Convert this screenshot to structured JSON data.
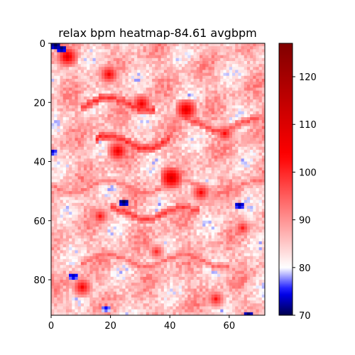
{
  "chart_data": {
    "type": "heatmap",
    "title": "relax bpm heatmap-84.61 avgbpm",
    "xlabel": "",
    "ylabel": "",
    "grid": "off",
    "cols": 72,
    "rows": 92,
    "x_range": [
      0,
      72
    ],
    "y_range": [
      0,
      92
    ],
    "y_axis_direction": "top-to-bottom",
    "x_ticks": [
      0,
      20,
      40,
      60
    ],
    "y_ticks": [
      0,
      20,
      40,
      60,
      80
    ],
    "colormap": "seismic",
    "colorbar": {
      "placement": "right",
      "min": 70,
      "max": 127,
      "center": 80,
      "ticks": [
        70,
        80,
        90,
        100,
        110,
        120
      ]
    },
    "summary": {
      "mean_bpm": 84.61
    },
    "hot_spots": [
      {
        "x": 5,
        "y": 4,
        "value": 108
      },
      {
        "x": 19,
        "y": 10,
        "value": 105
      },
      {
        "x": 30,
        "y": 20,
        "value": 106
      },
      {
        "x": 45,
        "y": 22,
        "value": 109
      },
      {
        "x": 58,
        "y": 30,
        "value": 103
      },
      {
        "x": 22,
        "y": 36,
        "value": 107
      },
      {
        "x": 40,
        "y": 45,
        "value": 111
      },
      {
        "x": 50,
        "y": 50,
        "value": 104
      },
      {
        "x": 16,
        "y": 58,
        "value": 102
      },
      {
        "x": 64,
        "y": 62,
        "value": 101
      },
      {
        "x": 35,
        "y": 70,
        "value": 100
      },
      {
        "x": 10,
        "y": 82,
        "value": 105
      },
      {
        "x": 55,
        "y": 86,
        "value": 102
      }
    ],
    "cold_spots": [
      {
        "x": 1,
        "y": 0,
        "value": 70
      },
      {
        "x": 3,
        "y": 1,
        "value": 71
      },
      {
        "x": 24,
        "y": 53,
        "value": 70
      },
      {
        "x": 63,
        "y": 54,
        "value": 72
      },
      {
        "x": 7,
        "y": 78,
        "value": 73
      },
      {
        "x": 0,
        "y": 36,
        "value": 74
      },
      {
        "x": 66,
        "y": 91,
        "value": 71
      },
      {
        "x": 18,
        "y": 89,
        "value": 75
      }
    ],
    "bands": [
      {
        "y": 20,
        "x_start": 10,
        "x_end": 35,
        "value": 98
      },
      {
        "y": 27,
        "x_start": 45,
        "x_end": 70,
        "value": 96
      },
      {
        "y": 33,
        "x_start": 15,
        "x_end": 40,
        "value": 99
      },
      {
        "y": 48,
        "x_start": 0,
        "x_end": 72,
        "value": 92
      },
      {
        "y": 57,
        "x_start": 20,
        "x_end": 50,
        "value": 97
      },
      {
        "y": 73,
        "x_start": 10,
        "x_end": 60,
        "value": 93
      }
    ]
  }
}
